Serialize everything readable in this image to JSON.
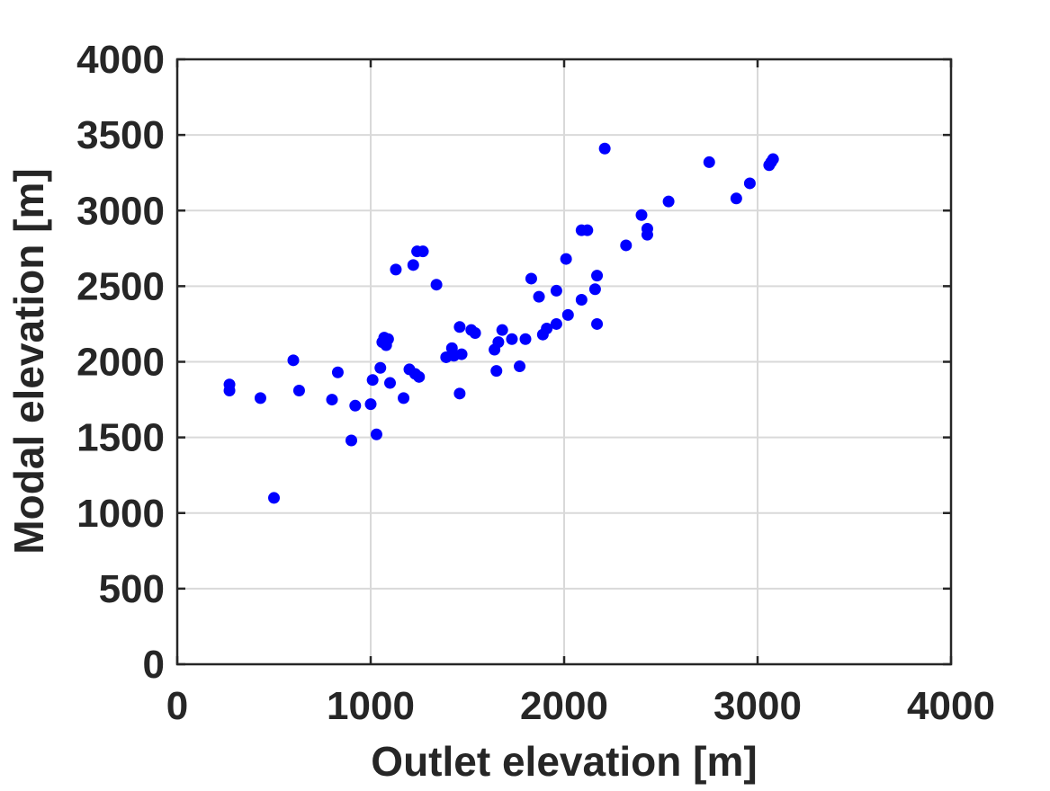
{
  "chart_data": {
    "type": "scatter",
    "title": "",
    "xlabel": "Outlet elevation [m]",
    "ylabel": "Modal elevation [m]",
    "xlim": [
      0,
      4000
    ],
    "ylim": [
      0,
      4000
    ],
    "xticks": [
      "0",
      "1000",
      "2000",
      "3000",
      "4000"
    ],
    "yticks": [
      "0",
      "500",
      "1000",
      "1500",
      "2000",
      "2500",
      "3000",
      "3500",
      "4000"
    ],
    "grid": true,
    "marker_color": "#0000ff",
    "points": [
      [
        270,
        1850
      ],
      [
        270,
        1810
      ],
      [
        430,
        1760
      ],
      [
        500,
        1100
      ],
      [
        600,
        2010
      ],
      [
        630,
        1810
      ],
      [
        800,
        1750
      ],
      [
        830,
        1930
      ],
      [
        900,
        1480
      ],
      [
        920,
        1710
      ],
      [
        1000,
        1720
      ],
      [
        1010,
        1880
      ],
      [
        1030,
        1520
      ],
      [
        1050,
        1960
      ],
      [
        1060,
        2130
      ],
      [
        1070,
        2160
      ],
      [
        1080,
        2110
      ],
      [
        1090,
        2150
      ],
      [
        1100,
        1860
      ],
      [
        1130,
        2610
      ],
      [
        1170,
        1760
      ],
      [
        1200,
        1950
      ],
      [
        1220,
        2640
      ],
      [
        1230,
        1920
      ],
      [
        1240,
        2730
      ],
      [
        1250,
        1900
      ],
      [
        1270,
        2730
      ],
      [
        1340,
        2510
      ],
      [
        1390,
        2030
      ],
      [
        1420,
        2090
      ],
      [
        1430,
        2040
      ],
      [
        1460,
        2230
      ],
      [
        1460,
        1790
      ],
      [
        1470,
        2050
      ],
      [
        1520,
        2210
      ],
      [
        1540,
        2190
      ],
      [
        1640,
        2080
      ],
      [
        1650,
        1940
      ],
      [
        1660,
        2130
      ],
      [
        1680,
        2210
      ],
      [
        1730,
        2150
      ],
      [
        1770,
        1970
      ],
      [
        1800,
        2150
      ],
      [
        1830,
        2550
      ],
      [
        1870,
        2430
      ],
      [
        1890,
        2180
      ],
      [
        1910,
        2220
      ],
      [
        1960,
        2470
      ],
      [
        1960,
        2250
      ],
      [
        2010,
        2680
      ],
      [
        2020,
        2310
      ],
      [
        2090,
        2410
      ],
      [
        2090,
        2870
      ],
      [
        2120,
        2870
      ],
      [
        2160,
        2480
      ],
      [
        2170,
        2570
      ],
      [
        2170,
        2250
      ],
      [
        2210,
        3410
      ],
      [
        2320,
        2770
      ],
      [
        2400,
        2970
      ],
      [
        2430,
        2840
      ],
      [
        2430,
        2880
      ],
      [
        2540,
        3060
      ],
      [
        2750,
        3320
      ],
      [
        2890,
        3080
      ],
      [
        2960,
        3180
      ],
      [
        3060,
        3300
      ],
      [
        3070,
        3320
      ],
      [
        3080,
        3340
      ]
    ]
  }
}
